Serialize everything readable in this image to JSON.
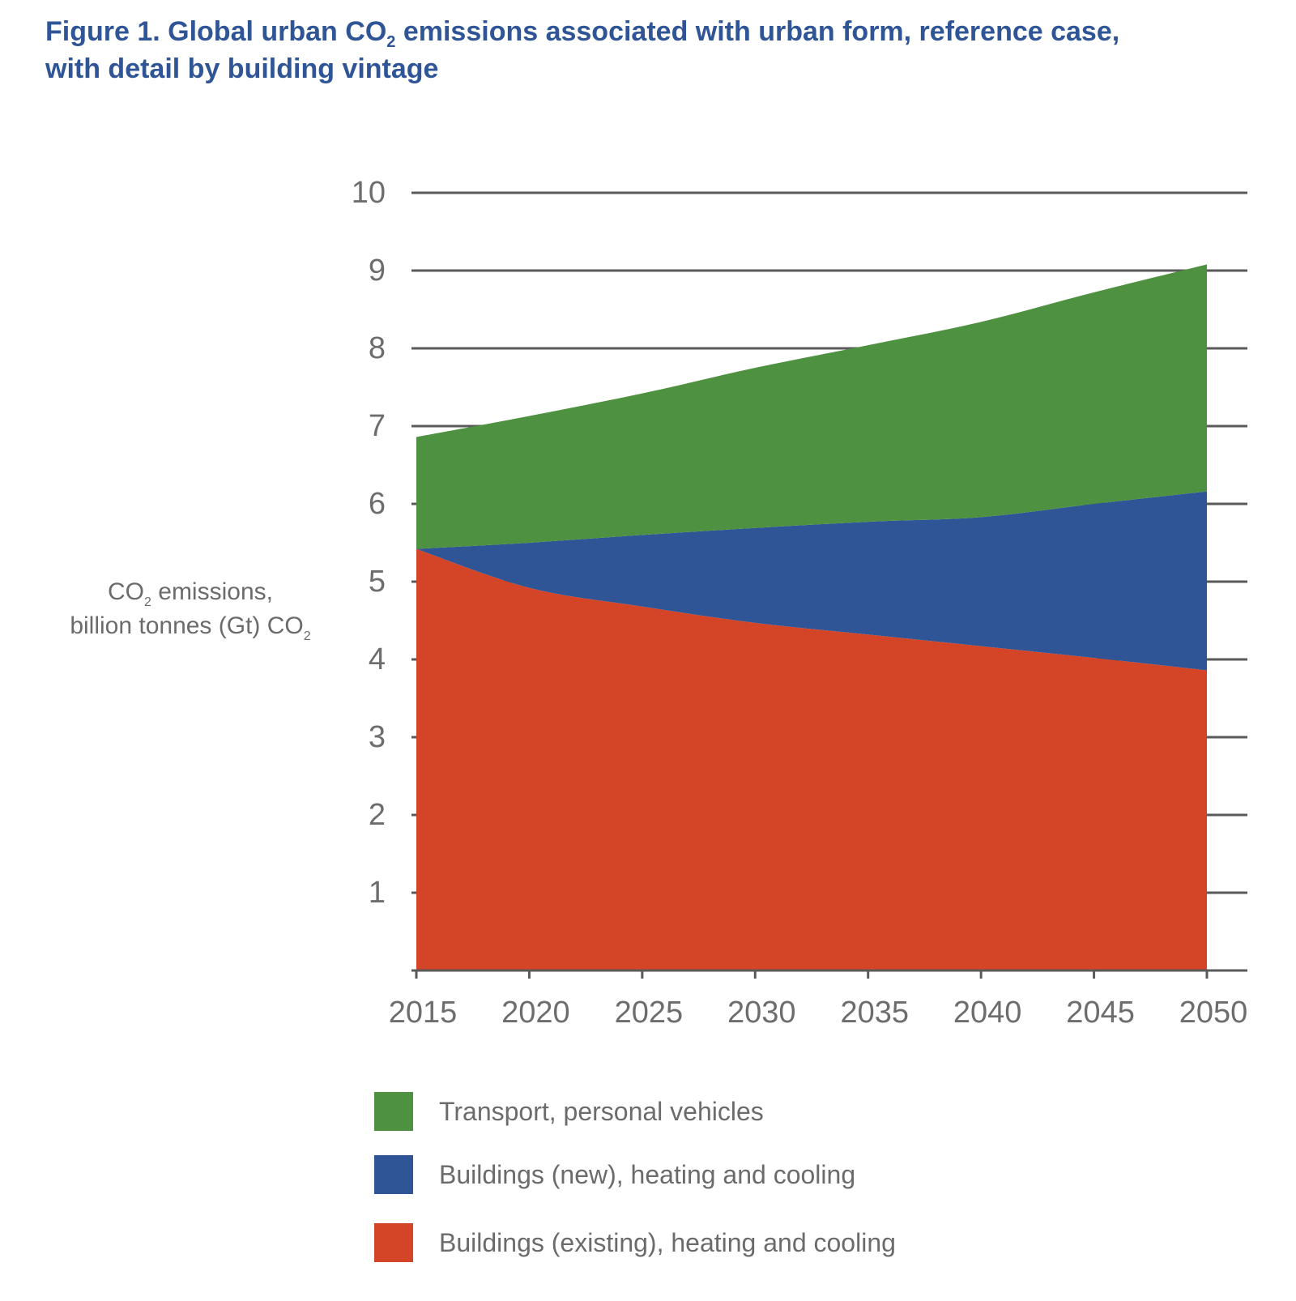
{
  "title": {
    "pre": "Figure 1. Global urban CO",
    "sub": "2",
    "post": " emissions associated with urban form, reference case,",
    "line2": "with detail by building vintage"
  },
  "ylabel": {
    "line1_pre": "CO",
    "line1_sub": "2",
    "line1_post": " emissions,",
    "line2_pre": "billion tonnes (Gt) CO",
    "line2_sub": "2"
  },
  "colors": {
    "title": "#2f5596",
    "transport": "#4e9140",
    "buildings_new": "#2f5596",
    "buildings_existing": "#d44427",
    "grid": "#5a5a5a",
    "text": "#6d6d6d"
  },
  "chart_data": {
    "type": "area",
    "stacked": true,
    "x": [
      2015,
      2020,
      2025,
      2030,
      2035,
      2040,
      2045,
      2050
    ],
    "xlim": [
      2015,
      2050
    ],
    "ylim": [
      0,
      10
    ],
    "yticks": [
      1,
      2,
      3,
      4,
      5,
      6,
      7,
      8,
      9,
      10
    ],
    "grid": true,
    "legend_position": "bottom",
    "series": [
      {
        "name": "Buildings (existing), heating and cooling",
        "color": "#d44427",
        "values": [
          5.42,
          4.92,
          4.68,
          4.47,
          4.32,
          4.17,
          4.02,
          3.86
        ]
      },
      {
        "name": "Buildings (new), heating and cooling",
        "color": "#2f5596",
        "values": [
          0.0,
          0.58,
          0.92,
          1.22,
          1.45,
          1.66,
          1.98,
          2.3
        ]
      },
      {
        "name": "Transport, personal vehicles",
        "color": "#4e9140",
        "values": [
          1.44,
          1.63,
          1.82,
          2.06,
          2.27,
          2.51,
          2.72,
          2.92
        ]
      }
    ]
  }
}
